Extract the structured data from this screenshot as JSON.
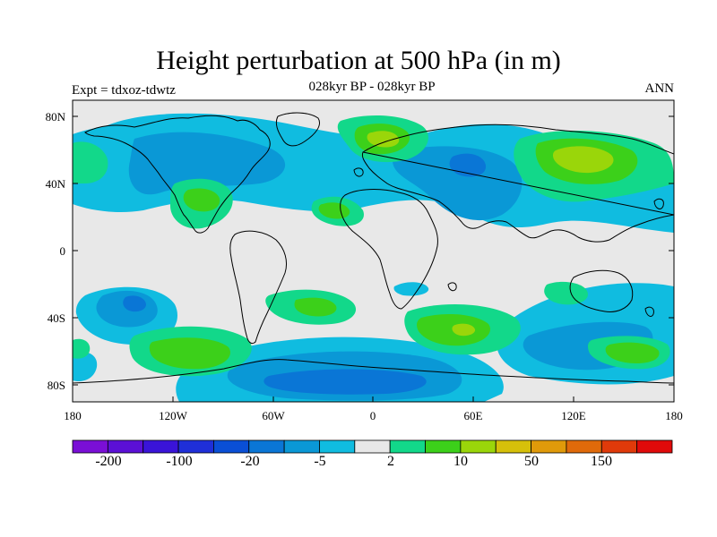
{
  "title": "Height perturbation at 500 hPa (in m)",
  "left_label": "Expt = tdxoz-tdwtz",
  "center_label": "028kyr BP - 028kyr BP",
  "right_label": "ANN",
  "axes": {
    "x_ticks": [
      "180",
      "120W",
      "60W",
      "0",
      "60E",
      "120E",
      "180"
    ],
    "y_ticks": [
      "80N",
      "40N",
      "0",
      "40S",
      "80S"
    ]
  },
  "colorbar": {
    "colors": [
      "#7a0fd6",
      "#5b10d6",
      "#3a14d8",
      "#1f2fd8",
      "#0a4fd6",
      "#0a76d6",
      "#0a98d6",
      "#10bce0",
      "#e8e8e8",
      "#12d88a",
      "#3cd01a",
      "#9ad60a",
      "#d6c00a",
      "#e09a0a",
      "#e06a0a",
      "#e03a0a",
      "#e00a0a"
    ],
    "labels": [
      "-200",
      "-100",
      "-20",
      "-5",
      "2",
      "10",
      "50",
      "150"
    ]
  },
  "legend_colors": {
    "land_outline": "#000000",
    "background_field": "#e8e8e8"
  }
}
